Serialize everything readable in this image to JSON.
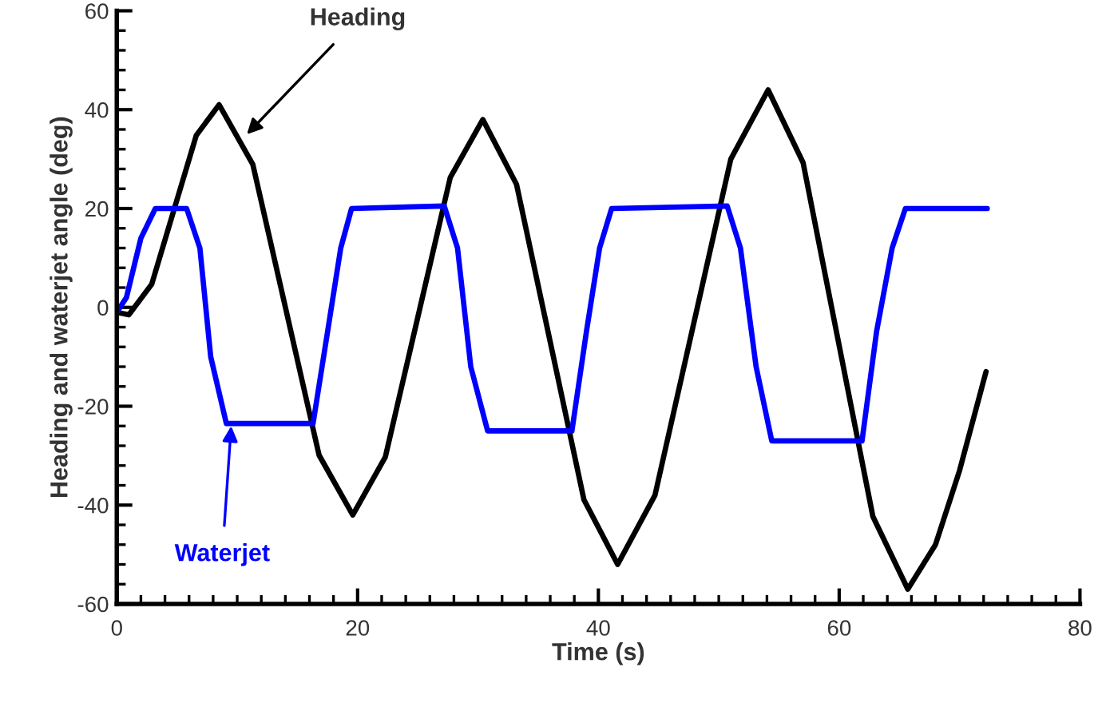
{
  "chart_data": {
    "type": "line",
    "xlabel": "Time (s)",
    "ylabel": "Heading and waterjet angle (deg)",
    "xlim": [
      0,
      80
    ],
    "xticks": [
      0,
      20,
      40,
      60,
      80
    ],
    "ylim": [
      -60,
      60
    ],
    "yticks": [
      -60,
      -40,
      -20,
      0,
      20,
      40,
      60
    ],
    "grid": false,
    "legend": false,
    "marker": "none",
    "line_style": "solid",
    "series": [
      {
        "color": "#000000",
        "x": [
          0,
          1,
          2.9,
          4.75,
          6.6,
          8.5,
          11.3,
          14.05,
          16.8,
          19.6,
          22.3,
          25.0,
          27.7,
          30.4,
          33.2,
          36.0,
          38.8,
          41.6,
          44.7,
          47.85,
          51.0,
          54.1,
          57.0,
          59.9,
          62.8,
          65.7,
          68,
          70,
          72.2
        ],
        "values": [
          -1,
          -1.5,
          4.7,
          19.75,
          34.8,
          41,
          28.9,
          -0.5,
          -29.9,
          -42,
          -30.3,
          -2,
          26.3,
          38,
          24.9,
          -7,
          -38.9,
          -52,
          -38,
          -4,
          30,
          44,
          29.3,
          -6.5,
          -42.3,
          -57,
          -48,
          -33,
          -13
        ]
      },
      {
        "color": "#0000ff",
        "x": [
          0,
          0.8,
          2.0,
          3.2,
          5.8,
          6.9,
          7.8,
          9.1,
          16.3,
          17.5,
          18.6,
          19.5,
          27.2,
          28.3,
          29.4,
          30.8,
          37.8,
          39.0,
          40.1,
          41.1,
          50.7,
          51.8,
          53.1,
          54.4,
          61.9,
          63.1,
          64.4,
          65.5,
          72.3
        ],
        "values": [
          -1,
          2,
          14,
          20,
          20,
          12,
          -10,
          -23.5,
          -23.5,
          -5,
          12,
          20,
          20.5,
          12,
          -12,
          -25,
          -25,
          -5,
          12,
          20,
          20.5,
          12,
          -12,
          -27,
          -27,
          -5,
          12,
          20,
          20
        ]
      }
    ],
    "annotations": [
      {
        "text": "Heading",
        "x": 10.8,
        "y": 35
      },
      {
        "text": "Waterjet",
        "x": 9.5,
        "y": -24
      }
    ]
  }
}
